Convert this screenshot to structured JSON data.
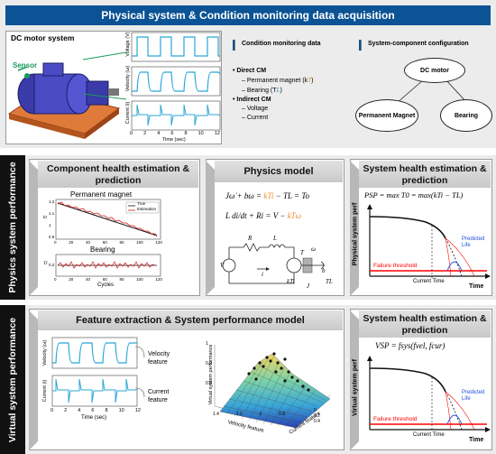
{
  "top": {
    "title": "Physical system & Condition monitoring data acquisition",
    "dc_motor_label": "DC motor system",
    "sensor_label": "Sensor",
    "signal_axes": {
      "voltage": "Voltage (V)",
      "velocity": "Velocity (ω)",
      "current": "Current (i)",
      "time": "Time (sec)",
      "ticks": [
        "0",
        "2",
        "4",
        "6",
        "8",
        "10",
        "12"
      ]
    },
    "cm_heading": "Condition monitoring data",
    "cm_direct": "Direct CM",
    "cm_pm": "Permanent magnet (k",
    "cm_pm_sub": "T",
    "cm_bearing": "Bearing (T",
    "cm_bearing_sub": "L",
    "cm_indirect": "Indirect CM",
    "cm_voltage": "Voltage",
    "cm_current": "Current",
    "syscomp_heading": "System-component configuration",
    "node_dc": "DC motor",
    "node_pm": "Permanent Magnet",
    "node_bearing": "Bearing"
  },
  "physics": {
    "side_label": "Physics system performance",
    "comp_title": "Component health estimation & prediction",
    "pm_title": "Permanent magnet",
    "pm_ylabel": "kt",
    "pm_yticks": [
      "1.2",
      "1.1",
      "1",
      "0.9"
    ],
    "legend_true": "True",
    "legend_est": "Estimation",
    "bearing_title": "Bearing",
    "bearing_ylabel": "Tl",
    "bearing_ytick": "0.2",
    "xticks": [
      "0",
      "20",
      "40",
      "60",
      "80",
      "100",
      "120"
    ],
    "xlabel": "Cycles",
    "model_title": "Physics model",
    "eq1_left": "Jω̇ + bω = ",
    "eq1_mid": "kTi",
    "eq1_right": " − TL = To",
    "eq2_left": "L di/dt + Ri = V − ",
    "eq2_mid": "kTω",
    "circuit": {
      "R": "R",
      "L": "L",
      "V": "V",
      "i": "i",
      "kti": "kTi",
      "T": "T",
      "omega": "ω",
      "J": "J",
      "b": "b",
      "TL": "TL"
    },
    "sys_title": "System health estimation & prediction",
    "psp_eq": "PSP = max T0 = max(kTi − TL)",
    "ylabel": "Physical system perf",
    "failure_label": "Failure threshold",
    "current_time": "Current Time",
    "time_label": "Time",
    "predicted_life": "Predicted Life"
  },
  "virtual": {
    "side_label": "Virtual system performance",
    "feat_title": "Feature extraction & System performance model",
    "vel_label": "Velocity (ω)",
    "cur_label": "Current (i)",
    "vel_feature": "Velocity feature",
    "cur_feature": "Current feature",
    "time": "Time (sec)",
    "ticks": [
      "0",
      "2",
      "4",
      "6",
      "8",
      "10",
      "12"
    ],
    "surf_zlabel": "Virtual system performance",
    "surf_x": "Velocity feature",
    "surf_y": "Current feature",
    "surf_ticks_z": [
      "1",
      "0.9",
      "0.8"
    ],
    "surf_ticks_x": [
      "1.4",
      "1.2",
      "1",
      "0.8"
    ],
    "surf_ticks_y": [
      "0",
      "0.2",
      "0.4"
    ],
    "sys_title": "System health estimation & prediction",
    "vsp_eq": "VSP = fsys(fvel, fcur)",
    "ylabel": "Virtual system perf",
    "failure_label": "Failure threshold",
    "current_time": "Current Time",
    "time_label": "Time",
    "predicted_life": "Predicted Life"
  },
  "colors": {
    "banner": "#0b5394",
    "true_line": "#111111",
    "est_line": "#d7191c",
    "signal": "#2aa7d6",
    "highlight": "#f28c28",
    "failure": "#ff0000"
  }
}
